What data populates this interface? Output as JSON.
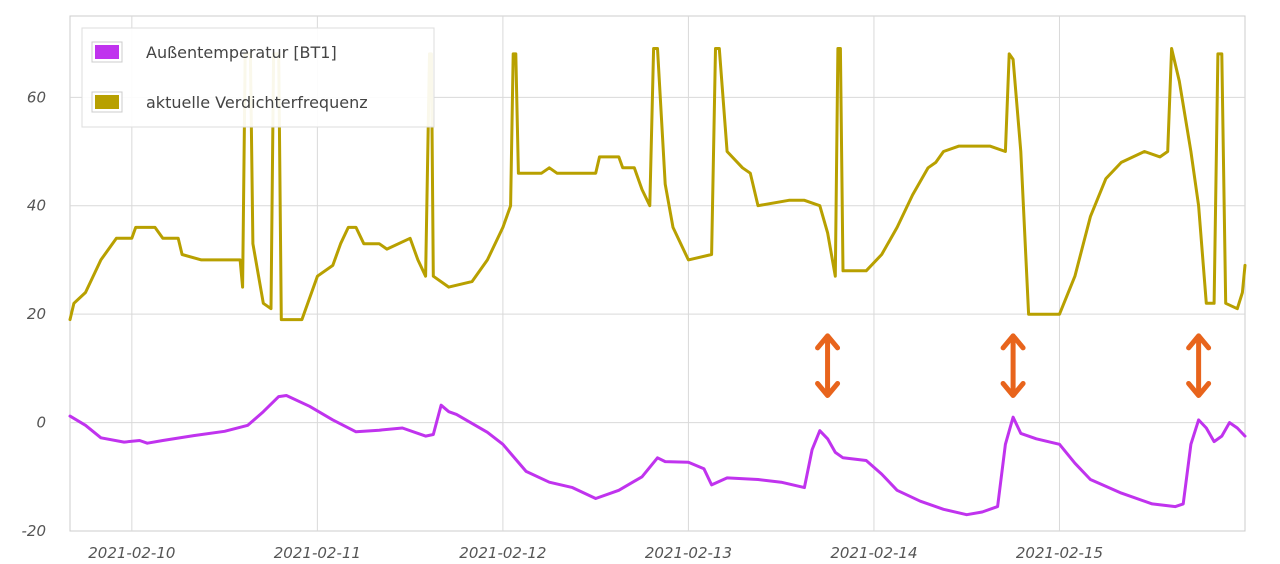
{
  "chart_data": {
    "type": "line",
    "title": "",
    "xlabel": "",
    "ylabel": "",
    "ylim": [
      -20,
      75
    ],
    "y_ticks": [
      "-20",
      "0",
      "20",
      "40",
      "60"
    ],
    "x_range": [
      "2021-02-09 16:00",
      "2021-02-16 00:00"
    ],
    "x_ticks": [
      "2021-02-10",
      "2021-02-11",
      "2021-02-12",
      "2021-02-13",
      "2021-02-14",
      "2021-02-15"
    ],
    "grid": true,
    "legend_position": "top-left",
    "series": [
      {
        "name": "Außentemperatur [BT1]",
        "color": "#c033ee",
        "points": [
          [
            "2021-02-09 16:00",
            1.2
          ],
          [
            "2021-02-09 18:00",
            -0.5
          ],
          [
            "2021-02-09 20:00",
            -2.8
          ],
          [
            "2021-02-09 23:00",
            -3.6
          ],
          [
            "2021-02-10 01:00",
            -3.3
          ],
          [
            "2021-02-10 02:00",
            -3.8
          ],
          [
            "2021-02-10 04:00",
            -3.3
          ],
          [
            "2021-02-10 08:00",
            -2.4
          ],
          [
            "2021-02-10 12:00",
            -1.6
          ],
          [
            "2021-02-10 15:00",
            -0.5
          ],
          [
            "2021-02-10 17:00",
            2.0
          ],
          [
            "2021-02-10 19:00",
            4.8
          ],
          [
            "2021-02-10 20:00",
            5.0
          ],
          [
            "2021-02-10 23:00",
            3.0
          ],
          [
            "2021-02-11 02:00",
            0.5
          ],
          [
            "2021-02-11 05:00",
            -1.7
          ],
          [
            "2021-02-11 08:00",
            -1.4
          ],
          [
            "2021-02-11 11:00",
            -1.0
          ],
          [
            "2021-02-11 14:00",
            -2.5
          ],
          [
            "2021-02-11 15:00",
            -2.2
          ],
          [
            "2021-02-11 16:00",
            3.2
          ],
          [
            "2021-02-11 17:00",
            2.0
          ],
          [
            "2021-02-11 18:00",
            1.5
          ],
          [
            "2021-02-11 22:00",
            -1.8
          ],
          [
            "2021-02-12 00:00",
            -4.0
          ],
          [
            "2021-02-12 03:00",
            -9.0
          ],
          [
            "2021-02-12 06:00",
            -11.0
          ],
          [
            "2021-02-12 09:00",
            -12.0
          ],
          [
            "2021-02-12 12:00",
            -14.0
          ],
          [
            "2021-02-12 15:00",
            -12.5
          ],
          [
            "2021-02-12 18:00",
            -10.0
          ],
          [
            "2021-02-12 20:00",
            -6.5
          ],
          [
            "2021-02-12 21:00",
            -7.2
          ],
          [
            "2021-02-13 00:00",
            -7.3
          ],
          [
            "2021-02-13 02:00",
            -8.5
          ],
          [
            "2021-02-13 03:00",
            -11.5
          ],
          [
            "2021-02-13 05:00",
            -10.2
          ],
          [
            "2021-02-13 09:00",
            -10.5
          ],
          [
            "2021-02-13 12:00",
            -11.0
          ],
          [
            "2021-02-13 15:00",
            -12.0
          ],
          [
            "2021-02-13 16:00",
            -5.0
          ],
          [
            "2021-02-13 17:00",
            -1.5
          ],
          [
            "2021-02-13 18:00",
            -3.0
          ],
          [
            "2021-02-13 19:00",
            -5.5
          ],
          [
            "2021-02-13 20:00",
            -6.5
          ],
          [
            "2021-02-13 23:00",
            -7.0
          ],
          [
            "2021-02-14 01:00",
            -9.5
          ],
          [
            "2021-02-14 03:00",
            -12.5
          ],
          [
            "2021-02-14 06:00",
            -14.5
          ],
          [
            "2021-02-14 09:00",
            -16.0
          ],
          [
            "2021-02-14 12:00",
            -17.0
          ],
          [
            "2021-02-14 14:00",
            -16.5
          ],
          [
            "2021-02-14 16:00",
            -15.5
          ],
          [
            "2021-02-14 17:00",
            -4.0
          ],
          [
            "2021-02-14 18:00",
            1.0
          ],
          [
            "2021-02-14 19:00",
            -2.0
          ],
          [
            "2021-02-14 21:00",
            -3.0
          ],
          [
            "2021-02-15 00:00",
            -4.0
          ],
          [
            "2021-02-15 02:00",
            -7.5
          ],
          [
            "2021-02-15 04:00",
            -10.5
          ],
          [
            "2021-02-15 08:00",
            -13.0
          ],
          [
            "2021-02-15 12:00",
            -15.0
          ],
          [
            "2021-02-15 15:00",
            -15.5
          ],
          [
            "2021-02-15 16:00",
            -15.0
          ],
          [
            "2021-02-15 17:00",
            -4.0
          ],
          [
            "2021-02-15 18:00",
            0.5
          ],
          [
            "2021-02-15 19:00",
            -1.0
          ],
          [
            "2021-02-15 20:00",
            -3.5
          ],
          [
            "2021-02-15 21:00",
            -2.5
          ],
          [
            "2021-02-15 22:00",
            0.0
          ],
          [
            "2021-02-15 23:00",
            -1.0
          ],
          [
            "2021-02-16 00:00",
            -2.5
          ]
        ]
      },
      {
        "name": "aktuelle Verdichterfrequenz",
        "color": "#b8a000",
        "points": [
          [
            "2021-02-09 16:00",
            19
          ],
          [
            "2021-02-09 16:30",
            22
          ],
          [
            "2021-02-09 18:00",
            24
          ],
          [
            "2021-02-09 20:00",
            30
          ],
          [
            "2021-02-09 22:00",
            34
          ],
          [
            "2021-02-10 00:00",
            34
          ],
          [
            "2021-02-10 00:30",
            36
          ],
          [
            "2021-02-10 03:00",
            36
          ],
          [
            "2021-02-10 04:00",
            34
          ],
          [
            "2021-02-10 06:00",
            34
          ],
          [
            "2021-02-10 06:30",
            31
          ],
          [
            "2021-02-10 09:00",
            30
          ],
          [
            "2021-02-10 14:00",
            30
          ],
          [
            "2021-02-10 14:20",
            25
          ],
          [
            "2021-02-10 14:40",
            68
          ],
          [
            "2021-02-10 15:20",
            68
          ],
          [
            "2021-02-10 15:40",
            33
          ],
          [
            "2021-02-10 17:00",
            22
          ],
          [
            "2021-02-10 18:00",
            21
          ],
          [
            "2021-02-10 18:20",
            68
          ],
          [
            "2021-02-10 19:00",
            68
          ],
          [
            "2021-02-10 19:20",
            19
          ],
          [
            "2021-02-10 22:00",
            19
          ],
          [
            "2021-02-11 00:00",
            27
          ],
          [
            "2021-02-11 02:00",
            29
          ],
          [
            "2021-02-11 03:00",
            33
          ],
          [
            "2021-02-11 04:00",
            36
          ],
          [
            "2021-02-11 05:00",
            36
          ],
          [
            "2021-02-11 06:00",
            33
          ],
          [
            "2021-02-11 08:00",
            33
          ],
          [
            "2021-02-11 09:00",
            32
          ],
          [
            "2021-02-11 12:00",
            34
          ],
          [
            "2021-02-11 13:00",
            30
          ],
          [
            "2021-02-11 14:00",
            27
          ],
          [
            "2021-02-11 14:30",
            68
          ],
          [
            "2021-02-11 14:45",
            68
          ],
          [
            "2021-02-11 15:00",
            27
          ],
          [
            "2021-02-11 17:00",
            25
          ],
          [
            "2021-02-11 20:00",
            26
          ],
          [
            "2021-02-11 22:00",
            30
          ],
          [
            "2021-02-12 00:00",
            36
          ],
          [
            "2021-02-12 01:00",
            40
          ],
          [
            "2021-02-12 01:20",
            68
          ],
          [
            "2021-02-12 01:40",
            68
          ],
          [
            "2021-02-12 02:00",
            46
          ],
          [
            "2021-02-12 05:00",
            46
          ],
          [
            "2021-02-12 06:00",
            47
          ],
          [
            "2021-02-12 07:00",
            46
          ],
          [
            "2021-02-12 12:00",
            46
          ],
          [
            "2021-02-12 12:30",
            49
          ],
          [
            "2021-02-12 15:00",
            49
          ],
          [
            "2021-02-12 15:30",
            47
          ],
          [
            "2021-02-12 17:00",
            47
          ],
          [
            "2021-02-12 18:00",
            43
          ],
          [
            "2021-02-12 19:00",
            40
          ],
          [
            "2021-02-12 19:30",
            69
          ],
          [
            "2021-02-12 20:00",
            69
          ],
          [
            "2021-02-12 21:00",
            44
          ],
          [
            "2021-02-12 22:00",
            36
          ],
          [
            "2021-02-13 00:00",
            30
          ],
          [
            "2021-02-13 03:00",
            31
          ],
          [
            "2021-02-13 03:30",
            69
          ],
          [
            "2021-02-13 04:00",
            69
          ],
          [
            "2021-02-13 05:00",
            50
          ],
          [
            "2021-02-13 07:00",
            47
          ],
          [
            "2021-02-13 08:00",
            46
          ],
          [
            "2021-02-13 09:00",
            40
          ],
          [
            "2021-02-13 13:00",
            41
          ],
          [
            "2021-02-13 15:00",
            41
          ],
          [
            "2021-02-13 17:00",
            40
          ],
          [
            "2021-02-13 18:00",
            35
          ],
          [
            "2021-02-13 19:00",
            27
          ],
          [
            "2021-02-13 19:20",
            69
          ],
          [
            "2021-02-13 19:40",
            69
          ],
          [
            "2021-02-13 20:00",
            28
          ],
          [
            "2021-02-13 23:00",
            28
          ],
          [
            "2021-02-14 01:00",
            31
          ],
          [
            "2021-02-14 03:00",
            36
          ],
          [
            "2021-02-14 05:00",
            42
          ],
          [
            "2021-02-14 07:00",
            47
          ],
          [
            "2021-02-14 08:00",
            48
          ],
          [
            "2021-02-14 09:00",
            50
          ],
          [
            "2021-02-14 11:00",
            51
          ],
          [
            "2021-02-14 15:00",
            51
          ],
          [
            "2021-02-14 17:00",
            50
          ],
          [
            "2021-02-14 17:30",
            68
          ],
          [
            "2021-02-14 18:00",
            67
          ],
          [
            "2021-02-14 19:00",
            50
          ],
          [
            "2021-02-14 20:00",
            20
          ],
          [
            "2021-02-15 00:00",
            20
          ],
          [
            "2021-02-15 02:00",
            27
          ],
          [
            "2021-02-15 04:00",
            38
          ],
          [
            "2021-02-15 06:00",
            45
          ],
          [
            "2021-02-15 08:00",
            48
          ],
          [
            "2021-02-15 11:00",
            50
          ],
          [
            "2021-02-15 13:00",
            49
          ],
          [
            "2021-02-15 14:00",
            50
          ],
          [
            "2021-02-15 14:30",
            69
          ],
          [
            "2021-02-15 15:30",
            63
          ],
          [
            "2021-02-15 17:00",
            50
          ],
          [
            "2021-02-15 18:00",
            40
          ],
          [
            "2021-02-15 19:00",
            22
          ],
          [
            "2021-02-15 20:00",
            22
          ],
          [
            "2021-02-15 20:30",
            68
          ],
          [
            "2021-02-15 21:00",
            68
          ],
          [
            "2021-02-15 21:30",
            22
          ],
          [
            "2021-02-15 23:00",
            21
          ],
          [
            "2021-02-15 23:40",
            24
          ],
          [
            "2021-02-16 00:00",
            29
          ]
        ]
      }
    ],
    "annotations": [
      {
        "type": "double-arrow",
        "color": "#e8641c",
        "x": "2021-02-13 18:00",
        "y_range": [
          5,
          16
        ]
      },
      {
        "type": "double-arrow",
        "color": "#e8641c",
        "x": "2021-02-14 18:00",
        "y_range": [
          5,
          16
        ]
      },
      {
        "type": "double-arrow",
        "color": "#e8641c",
        "x": "2021-02-15 18:00",
        "y_range": [
          5,
          16
        ]
      }
    ]
  }
}
